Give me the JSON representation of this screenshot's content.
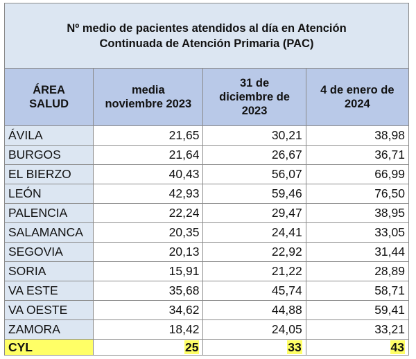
{
  "title_lines": [
    "Nº medio de pacientes atendidos al día en Atención",
    "Continuada de Atención Primaria (PAC)"
  ],
  "headers": {
    "area": [
      "ÁREA",
      "SALUD"
    ],
    "col1": [
      "media",
      "noviembre 2023"
    ],
    "col2": [
      "31 de",
      "diciembre de",
      "2023"
    ],
    "col3": [
      "4 de enero de",
      "2024"
    ]
  },
  "rows": [
    {
      "area": "ÁVILA",
      "v1": "21,65",
      "v2": "30,21",
      "v3": "38,98"
    },
    {
      "area": "BURGOS",
      "v1": "21,64",
      "v2": "26,67",
      "v3": "36,71"
    },
    {
      "area": "EL BIERZO",
      "v1": "40,43",
      "v2": "56,07",
      "v3": "66,99"
    },
    {
      "area": "LEÓN",
      "v1": "42,93",
      "v2": "59,46",
      "v3": "76,50"
    },
    {
      "area": "PALENCIA",
      "v1": "22,24",
      "v2": "29,47",
      "v3": "38,95"
    },
    {
      "area": "SALAMANCA",
      "v1": "20,35",
      "v2": "24,41",
      "v3": "33,05"
    },
    {
      "area": "SEGOVIA",
      "v1": "20,13",
      "v2": "22,92",
      "v3": "31,44"
    },
    {
      "area": "SORIA",
      "v1": "15,91",
      "v2": "21,22",
      "v3": "28,89"
    },
    {
      "area": "VA ESTE",
      "v1": "35,68",
      "v2": "45,74",
      "v3": "58,71"
    },
    {
      "area": "VA OESTE",
      "v1": "34,62",
      "v2": "44,88",
      "v3": "59,41"
    },
    {
      "area": "ZAMORA",
      "v1": "18,42",
      "v2": "24,05",
      "v3": "33,21"
    }
  ],
  "total": {
    "area": "CYL",
    "v1": "25",
    "v2": "33",
    "v3": "43"
  },
  "colors": {
    "title_bg": "#dce6f2",
    "header_bg": "#b9c9e8",
    "area_bg": "#dce6f2",
    "total_highlight": "#ffff66"
  }
}
